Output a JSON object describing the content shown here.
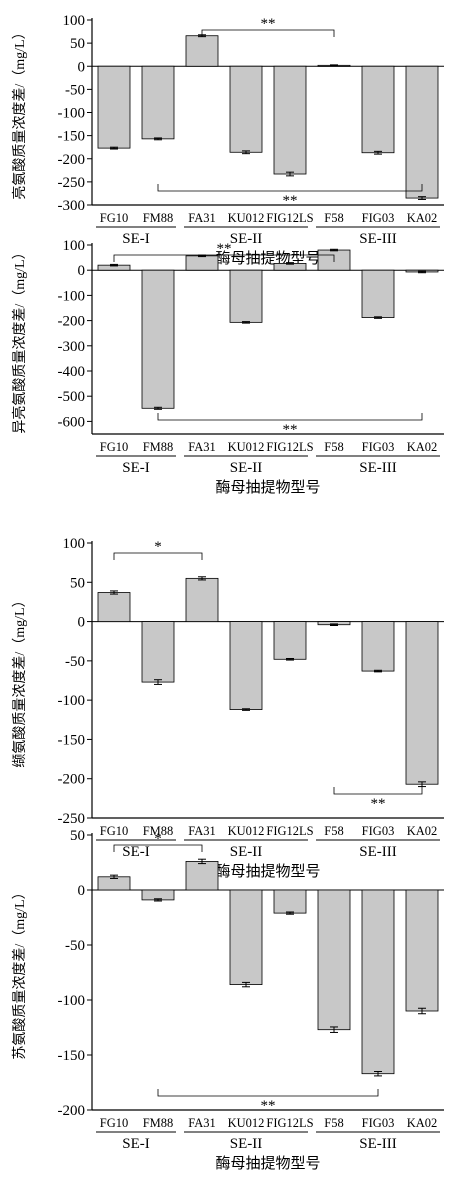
{
  "xlabel": "酶母抽提物型号",
  "groups": [
    {
      "label": "SE-I",
      "start": 0,
      "end": 1
    },
    {
      "label": "SE-II",
      "start": 2,
      "end": 4
    },
    {
      "label": "SE-III",
      "start": 5,
      "end": 7
    }
  ],
  "colors": {
    "bar": "#c8c8c8",
    "stroke": "#000000"
  },
  "chart_data": [
    {
      "type": "bar",
      "categories": [
        "FG10",
        "FM88",
        "FA31",
        "KU012",
        "FIG12LS",
        "F58",
        "FIG03",
        "KA02"
      ],
      "values": [
        -177,
        -157,
        66,
        -186,
        -233,
        2,
        -187,
        -285
      ],
      "errors": [
        2,
        2,
        2,
        3,
        4,
        1,
        3,
        3
      ],
      "ylabel": "亮氨酸质量浓度差/（mg/L）",
      "xlabel": "酶母抽提物型号",
      "ylim": [
        -300,
        100
      ],
      "yticks": [
        100,
        50,
        0,
        -50,
        -100,
        -150,
        -200,
        -250,
        -300
      ],
      "significance": [
        {
          "from": 2,
          "to": 5,
          "label": "**",
          "position": "above"
        },
        {
          "from": 1,
          "to": 7,
          "label": "**",
          "position": "below"
        }
      ]
    },
    {
      "type": "bar",
      "categories": [
        "FG10",
        "FM88",
        "FA31",
        "KU012",
        "FIG12LS",
        "F58",
        "FIG03",
        "KA02"
      ],
      "values": [
        20,
        -548,
        57,
        -207,
        27,
        80,
        -188,
        -7
      ],
      "errors": [
        3,
        4,
        3,
        3,
        3,
        3,
        3,
        3
      ],
      "ylabel": "异亮氨酸质量浓度差/（mg/L）",
      "xlabel": "酶母抽提物型号",
      "ylim": [
        -650,
        100
      ],
      "yticks": [
        100,
        0,
        -100,
        -200,
        -300,
        -400,
        -500,
        -600
      ],
      "significance": [
        {
          "from": 0,
          "to": 5,
          "label": "**",
          "position": "above"
        },
        {
          "from": 1,
          "to": 7,
          "label": "**",
          "position": "below"
        }
      ]
    },
    {
      "type": "bar",
      "categories": [
        "FG10",
        "FM88",
        "FA31",
        "KU012",
        "FIG12LS",
        "F58",
        "FIG03",
        "KA02"
      ],
      "values": [
        37,
        -77,
        55,
        -112,
        -48,
        -4,
        -63,
        -207
      ],
      "errors": [
        2,
        3,
        2,
        1,
        1,
        1,
        1,
        3
      ],
      "ylabel": "缬氨酸质量浓度差/（mg/L）",
      "xlabel": "酶母抽提物型号",
      "ylim": [
        -250,
        100
      ],
      "yticks": [
        100,
        50,
        0,
        -50,
        -100,
        -150,
        -200,
        -250
      ],
      "significance": [
        {
          "from": 0,
          "to": 2,
          "label": "*",
          "position": "above"
        },
        {
          "from": 5,
          "to": 7,
          "label": "**",
          "position": "below"
        }
      ]
    },
    {
      "type": "bar",
      "categories": [
        "FG10",
        "FM88",
        "FA31",
        "KU012",
        "FIG12LS",
        "F58",
        "FIG03",
        "KA02"
      ],
      "values": [
        12,
        -9,
        26,
        -86,
        -21,
        -127,
        -167,
        -110
      ],
      "errors": [
        1.5,
        1,
        2,
        2,
        1,
        2.5,
        2,
        2.5
      ],
      "ylabel": "苏氨酸质量浓度差/（mg/L）",
      "xlabel": "酶母抽提物型号",
      "ylim": [
        -200,
        50
      ],
      "yticks": [
        50,
        0,
        -50,
        -100,
        -150,
        -200
      ],
      "significance": [
        {
          "from": 0,
          "to": 2,
          "label": "*",
          "position": "above"
        },
        {
          "from": 1,
          "to": 6,
          "label": "**",
          "position": "below"
        }
      ]
    }
  ]
}
